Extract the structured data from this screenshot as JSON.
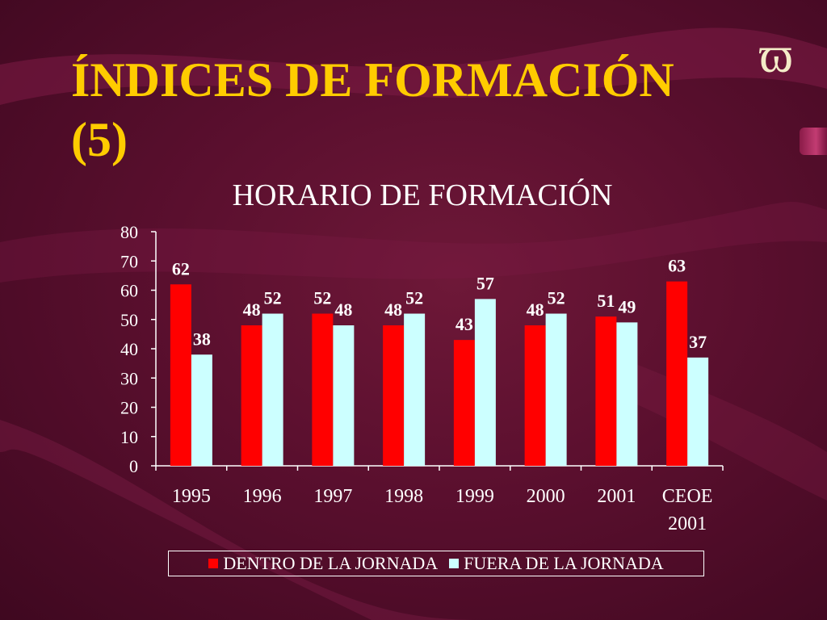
{
  "slide": {
    "title": "ÍNDICES DE FORMACIÓN (5)",
    "logo_icon": "ϖ"
  },
  "colors": {
    "title": "#ffcc00",
    "series_dentro": "#ff0000",
    "series_fuera": "#ccffff",
    "axis": "#ffffff",
    "label": "#ffffff"
  },
  "chart_data": {
    "type": "bar",
    "title": "HORARIO DE FORMACIÓN",
    "categories": [
      "1995",
      "1996",
      "1997",
      "1998",
      "1999",
      "2000",
      "2001",
      "CEOE 2001"
    ],
    "series": [
      {
        "name": "DENTRO DE LA JORNADA",
        "values": [
          62,
          48,
          52,
          48,
          43,
          48,
          51,
          63
        ]
      },
      {
        "name": "FUERA DE LA JORNADA",
        "values": [
          38,
          52,
          48,
          52,
          57,
          52,
          49,
          37
        ]
      }
    ],
    "ylim": [
      0,
      80
    ],
    "yticks": [
      0,
      10,
      20,
      30,
      40,
      50,
      60,
      70,
      80
    ],
    "grid": false,
    "legend_position": "bottom"
  }
}
